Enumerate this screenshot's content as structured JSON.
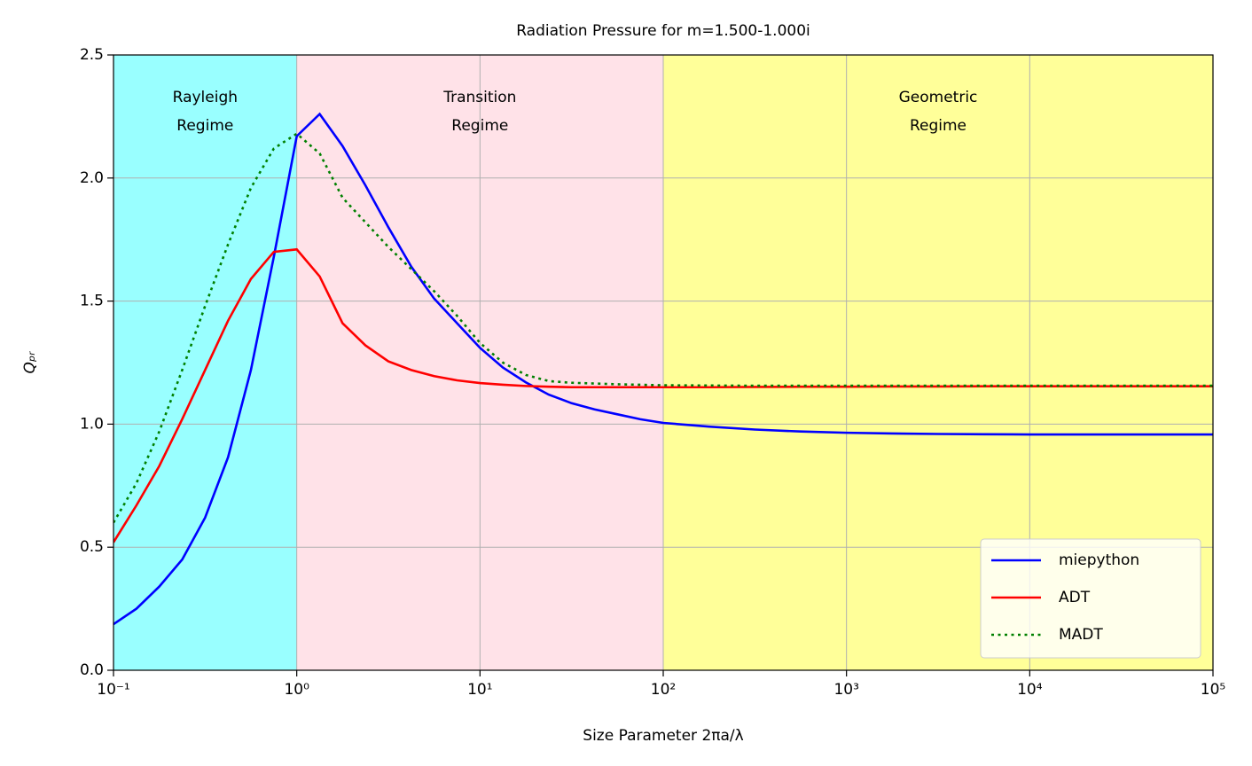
{
  "chart_data": {
    "type": "line",
    "title": "Radiation Pressure for m=1.500-1.000i",
    "xlabel": "Size Parameter 2πa/λ",
    "ylabel": "Qₚᵣ",
    "xscale": "log",
    "grid": true,
    "legend": "lower right",
    "xlim": [
      0.1,
      100000
    ],
    "ylim": [
      0,
      2.5
    ],
    "xticks": [
      {
        "value": 0.1,
        "label": "10⁻¹"
      },
      {
        "value": 1,
        "label": "10⁰"
      },
      {
        "value": 10,
        "label": "10¹"
      },
      {
        "value": 100,
        "label": "10²"
      },
      {
        "value": 1000,
        "label": "10³"
      },
      {
        "value": 10000,
        "label": "10⁴"
      },
      {
        "value": 100000,
        "label": "10⁵"
      }
    ],
    "yticks": [
      {
        "value": 0,
        "label": "0.0"
      },
      {
        "value": 0.5,
        "label": "0.5"
      },
      {
        "value": 1,
        "label": "1.0"
      },
      {
        "value": 1.5,
        "label": "1.5"
      },
      {
        "value": 2,
        "label": "2.0"
      },
      {
        "value": 2.5,
        "label": "2.5"
      }
    ],
    "regions": [
      {
        "xlim": [
          0.1,
          1
        ],
        "color": "#99ffff",
        "label": "Rayleigh\nRegime"
      },
      {
        "xlim": [
          1,
          100
        ],
        "color": "#ffe2e8",
        "label": "Transition\nRegime"
      },
      {
        "xlim": [
          100,
          100000
        ],
        "color": "#ffff99",
        "label": "Geometric\nRegime"
      }
    ],
    "x": [
      0.1,
      0.1334,
      0.1778,
      0.2371,
      0.3162,
      0.4217,
      0.5623,
      0.7499,
      1,
      1.334,
      1.778,
      2.371,
      3.162,
      4.217,
      5.623,
      7.499,
      10,
      13.34,
      17.78,
      23.71,
      31.62,
      42.17,
      56.23,
      74.99,
      100,
      177.8,
      316.2,
      562.3,
      1000,
      1778,
      3162,
      5623,
      10000,
      17780,
      31620,
      56230,
      100000
    ],
    "series": [
      {
        "name": "miepython",
        "color": "#0000ff",
        "dash": "solid",
        "values": [
          0.187,
          0.25,
          0.34,
          0.45,
          0.62,
          0.865,
          1.22,
          1.68,
          2.17,
          2.26,
          2.13,
          1.97,
          1.8,
          1.64,
          1.51,
          1.41,
          1.31,
          1.23,
          1.17,
          1.12,
          1.085,
          1.06,
          1.04,
          1.02,
          1.005,
          0.99,
          0.978,
          0.97,
          0.965,
          0.962,
          0.96,
          0.959,
          0.958,
          0.958,
          0.958,
          0.958,
          0.958
        ]
      },
      {
        "name": "ADT",
        "color": "#ff0000",
        "dash": "solid",
        "values": [
          0.52,
          0.67,
          0.83,
          1.02,
          1.22,
          1.42,
          1.59,
          1.7,
          1.71,
          1.6,
          1.41,
          1.32,
          1.255,
          1.22,
          1.195,
          1.178,
          1.167,
          1.16,
          1.155,
          1.152,
          1.15,
          1.15,
          1.15,
          1.15,
          1.15,
          1.15,
          1.151,
          1.152,
          1.152,
          1.153,
          1.153,
          1.154,
          1.154,
          1.154,
          1.154,
          1.154,
          1.154
        ]
      },
      {
        "name": "MADT",
        "color": "#008000",
        "dash": "dotted",
        "values": [
          0.6,
          0.76,
          0.97,
          1.22,
          1.48,
          1.73,
          1.96,
          2.12,
          2.18,
          2.1,
          1.92,
          1.82,
          1.72,
          1.63,
          1.54,
          1.44,
          1.33,
          1.25,
          1.2,
          1.175,
          1.168,
          1.165,
          1.162,
          1.16,
          1.158,
          1.157,
          1.156,
          1.156,
          1.156,
          1.156,
          1.156,
          1.156,
          1.156,
          1.156,
          1.156,
          1.156,
          1.156
        ]
      }
    ]
  }
}
